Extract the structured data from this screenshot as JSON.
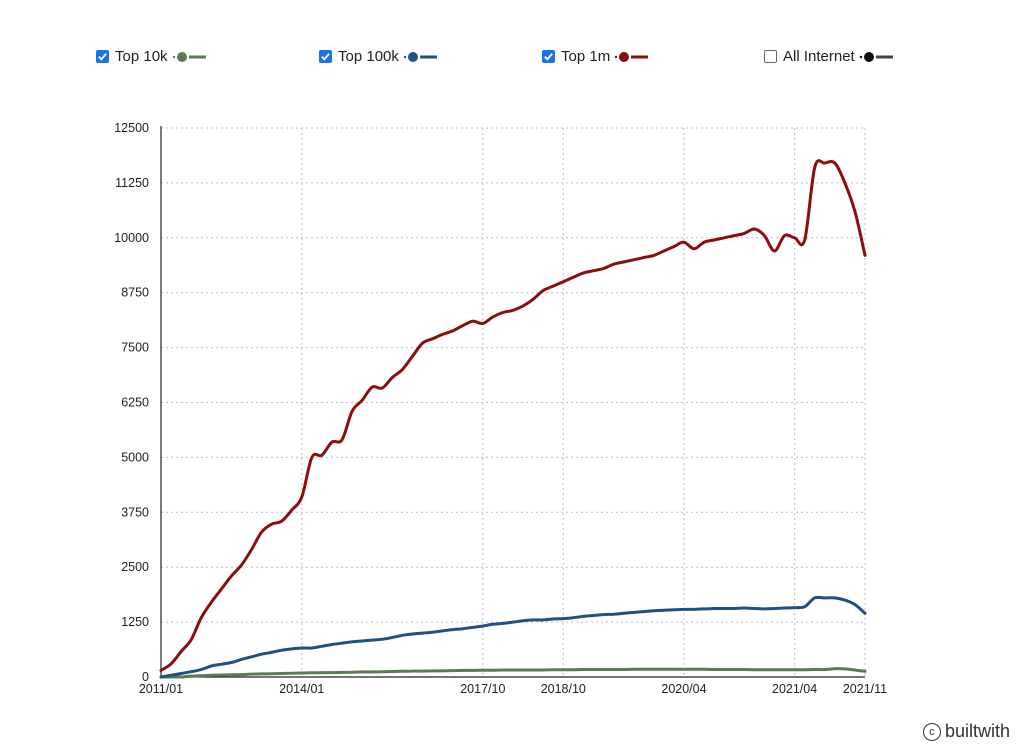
{
  "legend": [
    {
      "label": "Top 10k",
      "checked": true,
      "color": "#5b7a55"
    },
    {
      "label": "Top 100k",
      "checked": true,
      "color": "#1e5185"
    },
    {
      "label": "Top 1m",
      "checked": true,
      "color": "#8b0d0d"
    },
    {
      "label": "All Internet",
      "checked": false,
      "color": "#222222"
    }
  ],
  "watermark": "builtwith",
  "chart_data": {
    "type": "line",
    "xlabel": "",
    "ylabel": "",
    "ylim": [
      0,
      12500
    ],
    "y_ticks": [
      0,
      1250,
      2500,
      3750,
      5000,
      6250,
      7500,
      8750,
      10000,
      11250,
      12500
    ],
    "x_tick_labels": [
      "2011/01",
      "2014/01",
      "2017/10",
      "2018/10",
      "2020/04",
      "2021/04",
      "2021/11"
    ],
    "x": [
      "2011/01",
      "2011/03",
      "2011/06",
      "2011/09",
      "2011/11",
      "2012/01",
      "2012/03",
      "2012/06",
      "2012/09",
      "2012/12",
      "2013/03",
      "2013/06",
      "2013/09",
      "2013/11",
      "2014/01",
      "2014/03",
      "2014/06",
      "2014/09",
      "2014/11",
      "2015/01",
      "2015/04",
      "2015/07",
      "2015/10",
      "2016/01",
      "2016/03",
      "2016/06",
      "2016/09",
      "2016/11",
      "2017/01",
      "2017/03",
      "2017/05",
      "2017/08",
      "2017/10",
      "2017/11",
      "2018/01",
      "2018/02",
      "2018/04",
      "2018/05",
      "2018/07",
      "2018/08",
      "2018/10",
      "2018/11",
      "2019/01",
      "2019/02",
      "2019/04",
      "2019/05",
      "2019/07",
      "2019/08",
      "2019/10",
      "2019/11",
      "2020/01",
      "2020/02",
      "2020/04",
      "2020/05",
      "2020/06",
      "2020/07",
      "2020/09",
      "2020/10",
      "2020/11",
      "2020/12",
      "2021/01",
      "2021/02",
      "2021/03",
      "2021/04",
      "2021/05",
      "2021/06",
      "2021/07",
      "2021/08",
      "2021/09",
      "2021/10",
      "2021/11"
    ],
    "series": [
      {
        "name": "Top 10k",
        "color": "#5b7a55",
        "values": [
          0,
          0,
          0,
          20,
          30,
          40,
          45,
          50,
          55,
          65,
          70,
          75,
          80,
          85,
          90,
          95,
          100,
          100,
          105,
          110,
          115,
          115,
          120,
          125,
          130,
          135,
          135,
          140,
          140,
          145,
          150,
          150,
          155,
          155,
          160,
          160,
          160,
          160,
          160,
          165,
          165,
          165,
          170,
          170,
          170,
          170,
          170,
          175,
          175,
          175,
          175,
          175,
          175,
          175,
          175,
          170,
          170,
          170,
          170,
          165,
          165,
          165,
          165,
          165,
          165,
          170,
          170,
          190,
          185,
          160,
          130
        ]
      },
      {
        "name": "Top 100k",
        "color": "#1e5185",
        "values": [
          0,
          40,
          80,
          120,
          170,
          250,
          290,
          330,
          400,
          460,
          520,
          560,
          610,
          640,
          660,
          660,
          700,
          740,
          770,
          800,
          820,
          840,
          860,
          900,
          950,
          980,
          1000,
          1020,
          1050,
          1080,
          1100,
          1130,
          1160,
          1200,
          1220,
          1250,
          1280,
          1300,
          1300,
          1320,
          1330,
          1350,
          1380,
          1400,
          1420,
          1430,
          1450,
          1470,
          1490,
          1510,
          1520,
          1530,
          1540,
          1540,
          1550,
          1560,
          1560,
          1560,
          1570,
          1560,
          1550,
          1560,
          1570,
          1580,
          1600,
          1800,
          1800,
          1800,
          1750,
          1650,
          1450
        ]
      },
      {
        "name": "Top 1m",
        "color": "#8b0d0d",
        "values": [
          150,
          300,
          580,
          850,
          1350,
          1700,
          2000,
          2300,
          2550,
          2900,
          3300,
          3480,
          3550,
          3800,
          4100,
          5000,
          5050,
          5350,
          5400,
          6050,
          6300,
          6600,
          6580,
          6820,
          7000,
          7300,
          7600,
          7700,
          7800,
          7880,
          8000,
          8100,
          8050,
          8200,
          8300,
          8350,
          8450,
          8600,
          8800,
          8900,
          9000,
          9100,
          9200,
          9250,
          9300,
          9400,
          9450,
          9500,
          9550,
          9600,
          9700,
          9800,
          9900,
          9750,
          9900,
          9950,
          10000,
          10050,
          10100,
          10200,
          10050,
          9700,
          10050,
          10000,
          9950,
          11600,
          11700,
          11700,
          11250,
          10600,
          9600
        ]
      }
    ]
  }
}
